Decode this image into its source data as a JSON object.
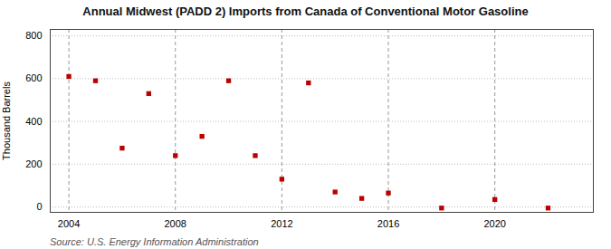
{
  "chart_data": {
    "type": "scatter",
    "title": "Annual Midwest (PADD 2) Imports from Canada of Conventional Motor Gasoline",
    "ylabel": "Thousand Barrels",
    "source": "Source: U.S. Energy Information Administration",
    "x": [
      2004,
      2005,
      2006,
      2007,
      2008,
      2009,
      2010,
      2011,
      2012,
      2013,
      2014,
      2015,
      2016,
      2018,
      2020,
      2022
    ],
    "values": [
      610,
      590,
      275,
      530,
      240,
      330,
      590,
      240,
      130,
      580,
      70,
      40,
      65,
      -5,
      35,
      -5
    ],
    "color": "#bb0000",
    "marker": "square",
    "xlim": [
      2003.3,
      2023.7
    ],
    "xticks": [
      2004,
      2008,
      2012,
      2016,
      2020
    ],
    "ylim": [
      -25,
      830
    ],
    "yticks": [
      0,
      200,
      400,
      600,
      800
    ],
    "grid": true
  }
}
